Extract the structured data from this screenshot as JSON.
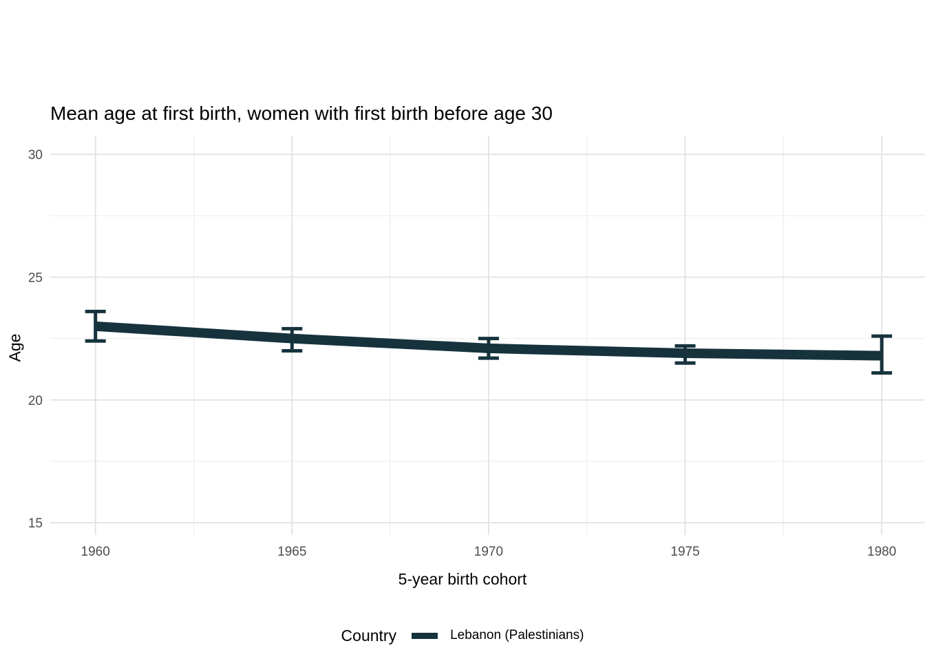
{
  "chart_data": {
    "type": "line",
    "title": "Mean age at first birth, women with first birth before age 30",
    "xlabel": "5-year birth cohort",
    "ylabel": "Age",
    "x": [
      1960,
      1965,
      1970,
      1975,
      1980
    ],
    "x_tick_labels": [
      "1960",
      "1965",
      "1970",
      "1975",
      "1980"
    ],
    "series": [
      {
        "name": "Lebanon (Palestinians)",
        "color": "#16333d",
        "means": [
          23.0,
          22.5,
          22.1,
          21.9,
          21.8
        ],
        "ci_low": [
          22.4,
          22.0,
          21.7,
          21.5,
          21.1
        ],
        "ci_high": [
          23.6,
          22.9,
          22.5,
          22.2,
          22.6
        ]
      }
    ],
    "y_ticks": [
      15,
      20,
      25,
      30
    ],
    "y_minor_ticks": [
      17.5,
      22.5,
      27.5
    ],
    "x_minor_ticks": [
      1962.5,
      1967.5,
      1972.5,
      1977.5
    ],
    "xlim": [
      1958.85,
      1981.1
    ],
    "ylim": [
      14.5,
      30.76
    ],
    "grid": {
      "major_color": "#e4e4e4",
      "minor_color": "#f0f0f0",
      "background": "#ffffff",
      "grid_on": true
    },
    "legend": {
      "title": "Country",
      "position": "bottom",
      "entries": [
        {
          "label": "Lebanon (Palestinians)",
          "color": "#16333d"
        }
      ]
    },
    "text_colors": {
      "title": "#000000",
      "tick": "#4d4d4d"
    }
  }
}
